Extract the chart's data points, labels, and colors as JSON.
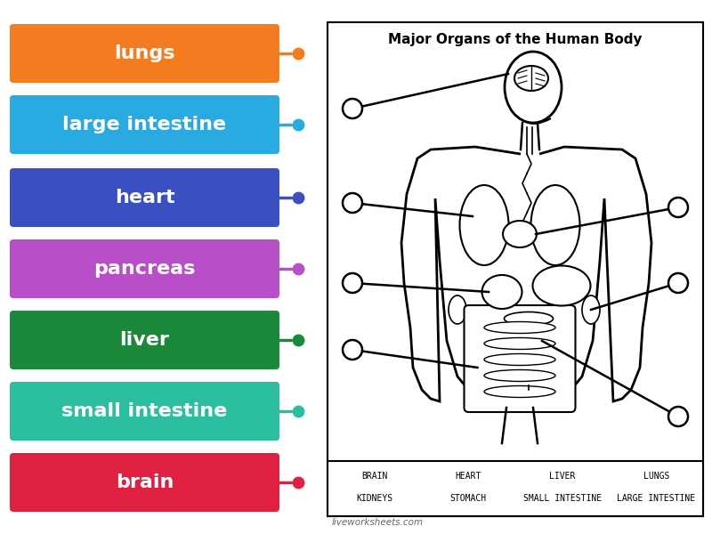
{
  "title": "Major Organs of the Human Body",
  "background_color": "#ffffff",
  "labels": [
    {
      "text": "lungs",
      "color": "#f47c20",
      "connector_color": "#f47c20"
    },
    {
      "text": "large intestine",
      "color": "#29aae1",
      "connector_color": "#29aae1"
    },
    {
      "text": "heart",
      "color": "#3a4fc1",
      "connector_color": "#3a4fc1"
    },
    {
      "text": "pancreas",
      "color": "#b94fc8",
      "connector_color": "#b94fc8"
    },
    {
      "text": "liver",
      "color": "#1a8a3a",
      "connector_color": "#1a8a3a"
    },
    {
      "text": "small intestine",
      "color": "#2bbfa0",
      "connector_color": "#2bbfa0"
    },
    {
      "text": "brain",
      "color": "#e02040",
      "connector_color": "#e02040"
    }
  ],
  "word_bank_row1": [
    "BRAIN",
    "HEART",
    "LIVER",
    "LUNGS"
  ],
  "word_bank_row2": [
    "KIDNEYS",
    "STOMACH",
    "SMALL INTESTINE",
    "LARGE INTESTINE"
  ],
  "footer_text": "liveworksheets.com"
}
